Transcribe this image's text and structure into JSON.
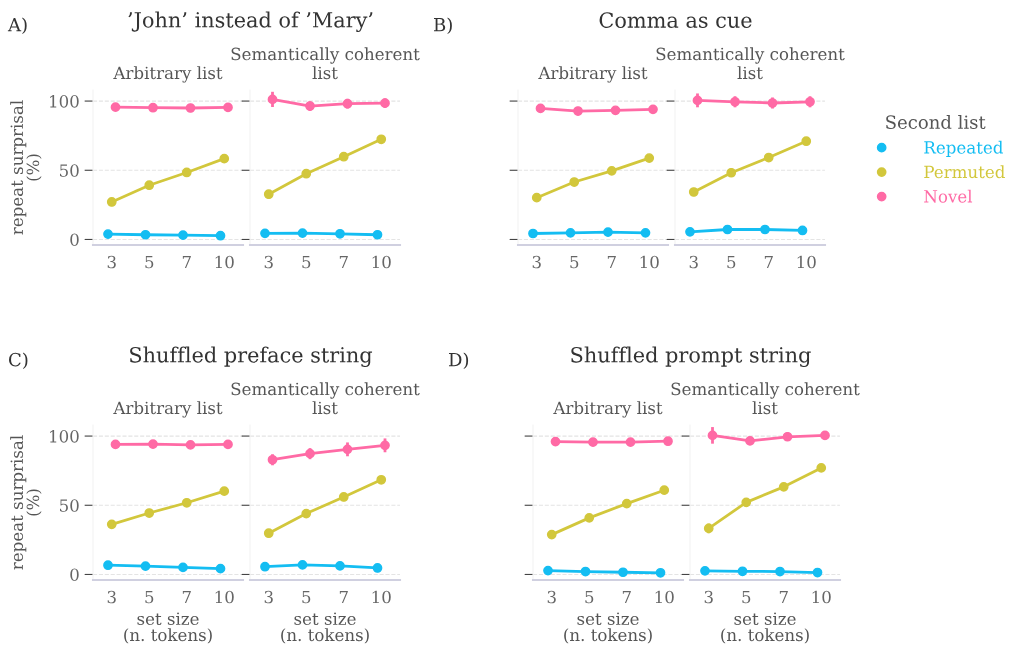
{
  "chart_data": [
    {
      "type": "line",
      "title": "’John’ instead of ’Mary’",
      "subtitle": "Arbitrary list",
      "annotations": [
        "A)"
      ],
      "ylabel": "repeat surprisal\n(%)",
      "categories": [
        "3",
        "5",
        "7",
        "10"
      ],
      "ylim": [
        -4,
        108
      ],
      "yticks": [
        0,
        50,
        100
      ],
      "grid": "y",
      "marker": "circle",
      "series": [
        {
          "color": "#14bdf2",
          "values": [
            3.9,
            3.4,
            3.1,
            2.7
          ]
        },
        {
          "color": "#d2c73c",
          "values": [
            27.1,
            39.2,
            48.4,
            58.4
          ]
        },
        {
          "color": "#ff6aa5",
          "values": [
            95.6,
            95.2,
            95,
            95.4
          ],
          "errors": [
            2,
            null,
            null,
            null
          ]
        }
      ]
    },
    {
      "type": "line",
      "subtitle": "Semantically coherent\nlist",
      "categories": [
        "3",
        "5",
        "7",
        "10"
      ],
      "ylim": [
        -4,
        108
      ],
      "yticks": [
        0,
        50,
        100
      ],
      "tick_labels": "x",
      "grid": "y",
      "marker": "circle",
      "legend": "right",
      "legend_title": "Second list",
      "series": [
        {
          "name": "Repeated",
          "color": "#14bdf2",
          "values": [
            4.4,
            4.6,
            4.1,
            3.4
          ]
        },
        {
          "name": "Permuted",
          "color": "#d2c73c",
          "values": [
            32.7,
            47.5,
            59.8,
            72.4
          ],
          "errors": [
            3,
            2,
            null,
            null
          ]
        },
        {
          "name": "Novel",
          "color": "#ff6aa5",
          "values": [
            101.2,
            96.4,
            98.1,
            98.5
          ],
          "errors": [
            5.5,
            3.5,
            3.5,
            3.5
          ]
        }
      ]
    },
    {
      "type": "line",
      "title": "Comma as cue",
      "subtitle": "Arbitrary list",
      "annotations": [
        "B)"
      ],
      "categories": [
        "3",
        "5",
        "7",
        "10"
      ],
      "ylim": [
        -4,
        108
      ],
      "yticks": [
        0,
        50,
        100
      ],
      "tick_labels": "x",
      "grid": "y",
      "marker": "circle",
      "series": [
        {
          "color": "#14bdf2",
          "values": [
            4.3,
            4.8,
            5.3,
            4.8
          ]
        },
        {
          "color": "#d2c73c",
          "values": [
            30.2,
            41.5,
            49.6,
            58.8
          ]
        },
        {
          "color": "#ff6aa5",
          "values": [
            94.7,
            92.8,
            93.3,
            94
          ],
          "errors": [
            2.5,
            null,
            null,
            null
          ]
        }
      ]
    },
    {
      "type": "line",
      "subtitle": "Semantically coherent\nlist",
      "categories": [
        "3",
        "5",
        "7",
        "10"
      ],
      "ylim": [
        -4,
        108
      ],
      "yticks": [
        0,
        50,
        100
      ],
      "tick_labels": "x",
      "grid": "y",
      "marker": "circle",
      "series": [
        {
          "color": "#14bdf2",
          "values": [
            5.5,
            7.2,
            7.2,
            6.5
          ]
        },
        {
          "color": "#d2c73c",
          "values": [
            34.3,
            48.2,
            59.2,
            71
          ],
          "errors": [
            2,
            3,
            2,
            null
          ]
        },
        {
          "color": "#ff6aa5",
          "values": [
            100.5,
            99.5,
            98.6,
            99.5
          ],
          "errors": [
            5,
            4,
            4,
            4
          ]
        }
      ]
    },
    {
      "type": "line",
      "title": "Shuffled preface string",
      "subtitle": "Arbitrary list",
      "annotations": [
        "C)"
      ],
      "ylabel": "repeat surprisal\n(%)",
      "xlabel": "set size\n(n. tokens)",
      "categories": [
        "3",
        "5",
        "7",
        "10"
      ],
      "ylim": [
        -4,
        108
      ],
      "yticks": [
        0,
        50,
        100
      ],
      "grid": "y",
      "marker": "circle",
      "series": [
        {
          "color": "#14bdf2",
          "values": [
            6.7,
            6,
            5.1,
            4.2
          ]
        },
        {
          "color": "#d2c73c",
          "values": [
            36.2,
            44.4,
            51.8,
            60.2
          ],
          "errors": [
            2.5,
            null,
            null,
            null
          ]
        },
        {
          "color": "#ff6aa5",
          "values": [
            94,
            94.2,
            93.6,
            94
          ]
        }
      ]
    },
    {
      "type": "line",
      "subtitle": "Semantically coherent\nlist",
      "xlabel": "set size\n(n. tokens)",
      "categories": [
        "3",
        "5",
        "7",
        "10"
      ],
      "ylim": [
        -4,
        108
      ],
      "yticks": [
        0,
        50,
        100
      ],
      "tick_labels": "x",
      "grid": "y",
      "marker": "circle",
      "series": [
        {
          "color": "#14bdf2",
          "values": [
            5.6,
            6.9,
            6.2,
            4.7
          ]
        },
        {
          "color": "#d2c73c",
          "values": [
            29.8,
            44,
            56,
            68.4
          ],
          "errors": [
            null,
            2,
            2.5,
            2
          ]
        },
        {
          "color": "#ff6aa5",
          "values": [
            82.9,
            87.3,
            90.4,
            93.3
          ],
          "errors": [
            4,
            4,
            5,
            5
          ]
        }
      ]
    },
    {
      "type": "line",
      "title": "Shuffled prompt string",
      "subtitle": "Arbitrary list",
      "annotations": [
        "D)"
      ],
      "xlabel": "set size\n(n. tokens)",
      "categories": [
        "3",
        "5",
        "7",
        "10"
      ],
      "ylim": [
        -4,
        108
      ],
      "yticks": [
        0,
        50,
        100
      ],
      "tick_labels": "x",
      "grid": "y",
      "marker": "circle",
      "series": [
        {
          "color": "#14bdf2",
          "values": [
            2.8,
            2.1,
            1.6,
            1.2
          ]
        },
        {
          "color": "#d2c73c",
          "values": [
            28.8,
            40.9,
            51.2,
            60.9
          ]
        },
        {
          "color": "#ff6aa5",
          "values": [
            96,
            95.6,
            95.6,
            96.3
          ],
          "errors": [
            2.5,
            null,
            null,
            null
          ]
        }
      ]
    },
    {
      "type": "line",
      "subtitle": "Semantically coherent\nlist",
      "xlabel": "set size\n(n. tokens)",
      "categories": [
        "3",
        "5",
        "7",
        "10"
      ],
      "ylim": [
        -4,
        108
      ],
      "yticks": [
        0,
        50,
        100
      ],
      "tick_labels": "x",
      "grid": "y",
      "marker": "circle",
      "series": [
        {
          "color": "#14bdf2",
          "values": [
            2.6,
            2.3,
            2.1,
            1.4
          ]
        },
        {
          "color": "#d2c73c",
          "values": [
            33.3,
            52.1,
            63.3,
            77
          ],
          "errors": [
            3.5,
            3,
            2.5,
            2
          ]
        },
        {
          "color": "#ff6aa5",
          "values": [
            100.5,
            96.5,
            99.5,
            100.5
          ],
          "errors": [
            6,
            3,
            3,
            3
          ]
        }
      ]
    }
  ]
}
